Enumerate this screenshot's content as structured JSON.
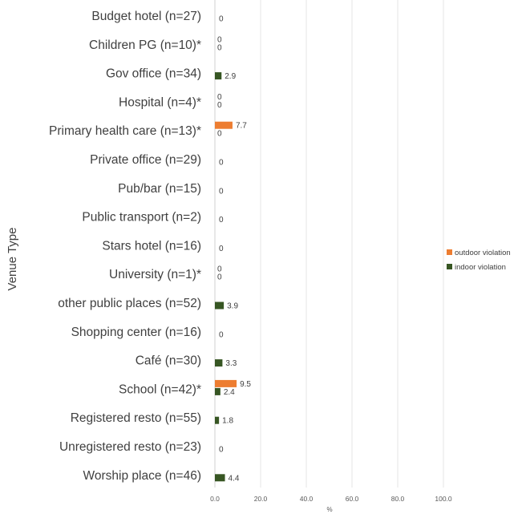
{
  "chart_data": {
    "type": "bar",
    "orientation": "horizontal",
    "ylabel": "Venue Type",
    "xlabel": "%",
    "xlim": [
      0,
      100
    ],
    "xticks": [
      "0.0",
      "20.0",
      "40.0",
      "60.0",
      "80.0",
      "100.0"
    ],
    "grid": true,
    "legend_position": "right",
    "categories": [
      "Budget hotel (n=27)",
      "Children PG (n=10)*",
      "Gov office (n=34)",
      "Hospital (n=4)*",
      "Primary health care (n=13)*",
      "Private office (n=29)",
      "Pub/bar (n=15)",
      "Public transport (n=2)",
      "Stars hotel (n=16)",
      "University (n=1)*",
      "other public places (n=52)",
      "Shopping center (n=16)",
      "Café (n=30)",
      "School (n=42)*",
      "Registered resto (n=55)",
      "Unregistered resto (n=23)",
      "Worship place (n=46)"
    ],
    "series": [
      {
        "name": "outdoor violation",
        "color": "#ED7D31",
        "values": [
          null,
          0,
          null,
          0,
          7.7,
          null,
          null,
          null,
          null,
          0,
          null,
          null,
          null,
          9.5,
          null,
          null,
          null
        ],
        "labels": [
          "",
          "0",
          "",
          "0",
          "7.7",
          "",
          "",
          "",
          "",
          "0",
          "",
          "",
          "",
          "9.5",
          "",
          "",
          ""
        ]
      },
      {
        "name": "indoor violation",
        "color": "#375623",
        "values": [
          0,
          0,
          2.9,
          0,
          0,
          0,
          0,
          0,
          0,
          0,
          3.9,
          0,
          3.3,
          2.4,
          1.8,
          0,
          4.4
        ],
        "labels": [
          "0",
          "0",
          "2.9",
          "0",
          "0",
          "0",
          "0",
          "0",
          "0",
          "0",
          "3.9",
          "0",
          "3.3",
          "2.4",
          "1.8",
          "0",
          "4.4"
        ]
      }
    ]
  }
}
